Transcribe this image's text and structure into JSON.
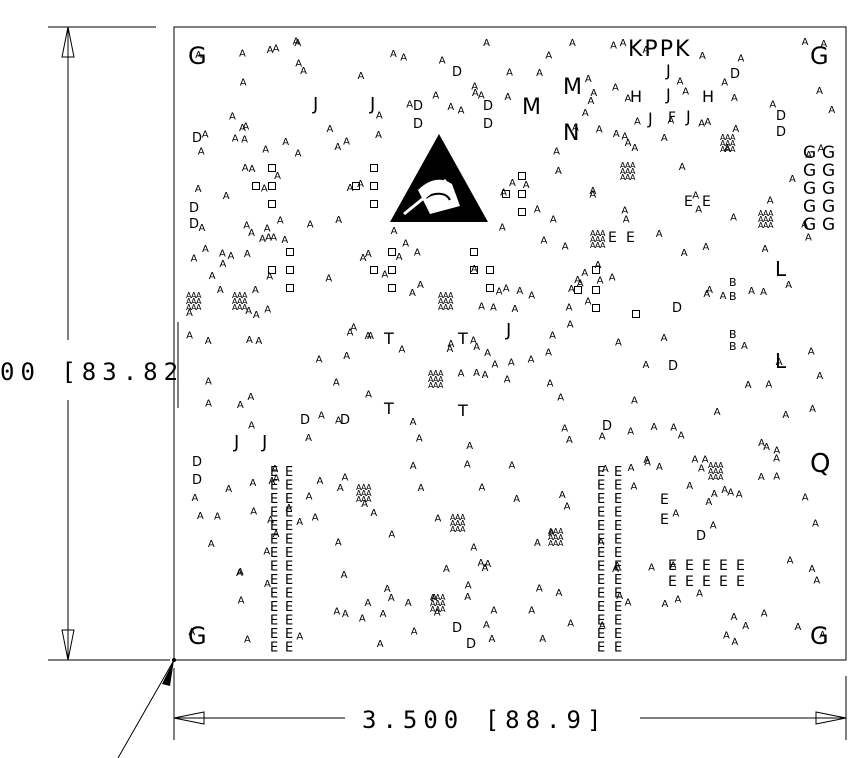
{
  "dimensions": {
    "horizontal": "3.500 [88.9]",
    "vertical": "00 [83.82"
  },
  "markers": {
    "corner": "G",
    "right_group": "G",
    "top_code": "KPPK",
    "big_m": "M",
    "big_n": "N",
    "q": "Q",
    "l": "L",
    "h": "H",
    "j": "J",
    "f": "F",
    "e": "E",
    "d": "D",
    "t": "T",
    "b": "B",
    "a": "A"
  },
  "colors": {
    "ink": "#000000",
    "background": "#ffffff"
  },
  "icons": [
    "esd-warning-icon",
    "component-pad-icon"
  ]
}
